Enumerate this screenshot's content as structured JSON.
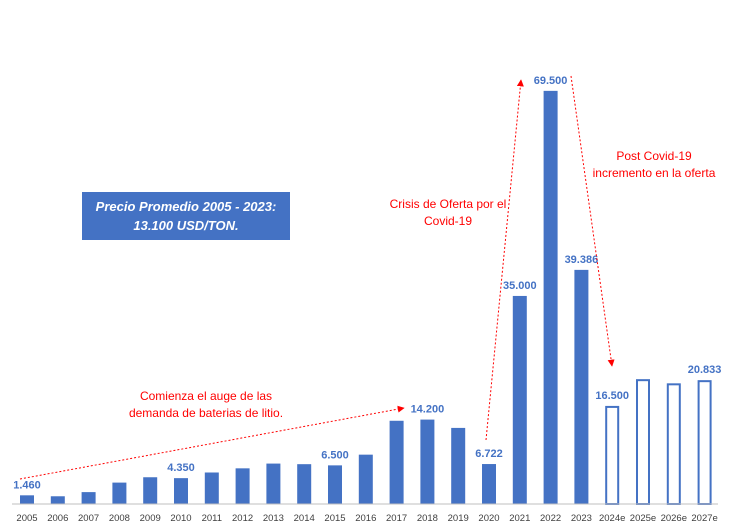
{
  "chart_data": {
    "type": "bar",
    "categories": [
      "2005",
      "2006",
      "2007",
      "2008",
      "2009",
      "2010",
      "2011",
      "2012",
      "2013",
      "2014",
      "2015",
      "2016",
      "2017",
      "2018",
      "2019",
      "2020",
      "2021",
      "2022",
      "2023",
      "2024e",
      "2025e",
      "2026e",
      "2027e"
    ],
    "values": [
      1460,
      1300,
      2000,
      3600,
      4500,
      4350,
      5300,
      6000,
      6800,
      6700,
      6500,
      8300,
      14000,
      14200,
      12800,
      6722,
      35000,
      69500,
      39386,
      16500,
      21000,
      20300,
      20833
    ],
    "estimated": [
      false,
      false,
      false,
      false,
      false,
      false,
      false,
      false,
      false,
      false,
      false,
      false,
      false,
      false,
      false,
      false,
      false,
      false,
      false,
      true,
      true,
      true,
      true
    ],
    "data_labels": {
      "2005": "1.460",
      "2010": "4.350",
      "2015": "6.500",
      "2018": "14.200",
      "2020": "6.722",
      "2021": "35.000",
      "2022": "69.500",
      "2023": "39.386",
      "2024e": "16.500",
      "2027e": "20.833"
    },
    "ylim": [
      0,
      72000
    ],
    "grid": false,
    "colors": {
      "bar": "#4472c4",
      "label": "#4472c4",
      "annotation": "#ff0000",
      "axis": "#bfbfbf"
    }
  },
  "summary_box": {
    "line1": "Precio Promedio  2005 - 2023:",
    "line2": "13.100 USD/TON."
  },
  "annotations": {
    "boom_line1": "Comienza el auge de las",
    "boom_line2": "demanda de baterias de litio.",
    "crisis_line1": "Crisis de Oferta por el",
    "crisis_line2": "Covid-19",
    "post_line1": "Post Covid-19",
    "post_line2": "incremento en la oferta"
  }
}
